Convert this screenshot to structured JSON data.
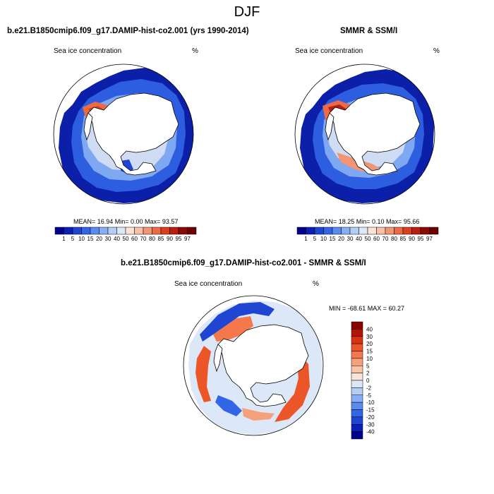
{
  "season": "DJF",
  "panels": {
    "model": {
      "title": "b.e21.B1850cmip6.f09_g17.DAMIP-hist-co2.001 (yrs 1990-2014)",
      "variable": "Sea ice concentration",
      "units": "%",
      "stats": "MEAN= 16.94 Min= 0.00 Max= 93.57"
    },
    "obs": {
      "title": "SMMR & SSM/I",
      "variable": "Sea ice concentration",
      "units": "%",
      "stats": "MEAN= 18.25 Min= 0.10 Max= 95.66"
    },
    "diff": {
      "title": "b.e21.B1850cmip6.f09_g17.DAMIP-hist-co2.001 - SMMR & SSM/I",
      "variable": "Sea ice concentration",
      "units": "%",
      "stats": "MIN = -68.61 MAX = 60.27"
    }
  },
  "colorbar_abs": {
    "labels": [
      "1",
      "5",
      "10",
      "15",
      "20",
      "30",
      "40",
      "50",
      "60",
      "70",
      "80",
      "85",
      "90",
      "95",
      "97"
    ],
    "colors": [
      "#00008b",
      "#0a1fb4",
      "#1e46d2",
      "#3366e6",
      "#5a8cf0",
      "#87aff5",
      "#b4cdf5",
      "#dce8f7",
      "#fbe3d6",
      "#f8c0a8",
      "#f39575",
      "#ec6a45",
      "#d8401f",
      "#b81f10",
      "#8a0a05",
      "#6e0000"
    ]
  },
  "colorbar_diff": {
    "labels": [
      "40",
      "30",
      "20",
      "15",
      "10",
      "5",
      "2",
      "0",
      "-2",
      "-5",
      "-10",
      "-15",
      "-20",
      "-30",
      "-40"
    ],
    "colors": [
      "#8a0000",
      "#b41405",
      "#d8320f",
      "#ec5527",
      "#f4784c",
      "#f6a07b",
      "#f8c4a8",
      "#fbe3d6",
      "#dce8f7",
      "#b4cdf5",
      "#87aff5",
      "#5a8cf0",
      "#3366e6",
      "#1e46d2",
      "#0a1fb4",
      "#00008b"
    ]
  }
}
